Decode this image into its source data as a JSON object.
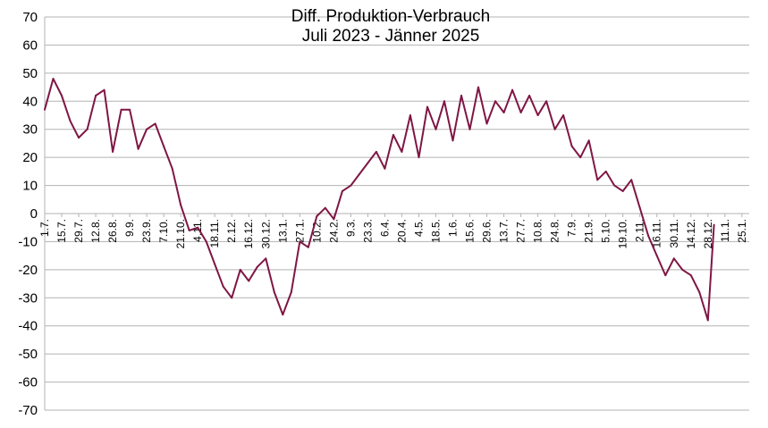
{
  "chart_data": {
    "type": "line",
    "title": "Diff. Produktion-Verbrauch",
    "subtitle": "Juli 2023 - Jänner 2025",
    "xlabel": "",
    "ylabel": "",
    "ylim": [
      -70,
      70
    ],
    "y_ticks": [
      70,
      60,
      50,
      40,
      30,
      20,
      10,
      0,
      -10,
      -20,
      -30,
      -40,
      -50,
      -60,
      -70
    ],
    "x_tick_labels": [
      "1.7.",
      "15.7.",
      "29.7.",
      "12.8.",
      "26.8.",
      "9.9.",
      "23.9.",
      "7.10.",
      "21.10.",
      "4.11.",
      "18.11.",
      "2.12.",
      "16.12.",
      "30.12.",
      "13.1.",
      "27.1.",
      "10.2.",
      "24.2.",
      "9.3.",
      "23.3.",
      "6.4.",
      "20.4.",
      "4.5.",
      "18.5.",
      "1.6.",
      "15.6.",
      "29.6.",
      "13.7.",
      "27.7.",
      "10.8.",
      "24.8.",
      "7.9.",
      "21.9.",
      "5.10.",
      "19.10.",
      "2.11.",
      "16.11.",
      "30.11.",
      "14.12.",
      "28.12.",
      "11.1.",
      "25.1."
    ],
    "grid": true,
    "legend": "none",
    "line_color": "#7f1644",
    "series": [
      {
        "values": [
          {
            "x": "2023-07-01",
            "y": 37
          },
          {
            "x": "2023-07-08",
            "y": 48
          },
          {
            "x": "2023-07-15",
            "y": 42
          },
          {
            "x": "2023-07-22",
            "y": 33
          },
          {
            "x": "2023-07-29",
            "y": 27
          },
          {
            "x": "2023-08-05",
            "y": 30
          },
          {
            "x": "2023-08-12",
            "y": 42
          },
          {
            "x": "2023-08-19",
            "y": 44
          },
          {
            "x": "2023-08-26",
            "y": 22
          },
          {
            "x": "2023-09-02",
            "y": 37
          },
          {
            "x": "2023-09-09",
            "y": 37
          },
          {
            "x": "2023-09-16",
            "y": 23
          },
          {
            "x": "2023-09-23",
            "y": 30
          },
          {
            "x": "2023-09-30",
            "y": 32
          },
          {
            "x": "2023-10-07",
            "y": 24
          },
          {
            "x": "2023-10-14",
            "y": 16
          },
          {
            "x": "2023-10-21",
            "y": 3
          },
          {
            "x": "2023-10-28",
            "y": -6
          },
          {
            "x": "2023-11-04",
            "y": -5
          },
          {
            "x": "2023-11-11",
            "y": -10
          },
          {
            "x": "2023-11-18",
            "y": -18
          },
          {
            "x": "2023-11-25",
            "y": -26
          },
          {
            "x": "2023-12-02",
            "y": -30
          },
          {
            "x": "2023-12-09",
            "y": -20
          },
          {
            "x": "2023-12-16",
            "y": -24
          },
          {
            "x": "2023-12-23",
            "y": -19
          },
          {
            "x": "2023-12-30",
            "y": -16
          },
          {
            "x": "2024-01-06",
            "y": -28
          },
          {
            "x": "2024-01-13",
            "y": -36
          },
          {
            "x": "2024-01-20",
            "y": -28
          },
          {
            "x": "2024-01-27",
            "y": -10
          },
          {
            "x": "2024-02-03",
            "y": -12
          },
          {
            "x": "2024-02-10",
            "y": -1
          },
          {
            "x": "2024-02-17",
            "y": 2
          },
          {
            "x": "2024-02-24",
            "y": -2
          },
          {
            "x": "2024-03-02",
            "y": 8
          },
          {
            "x": "2024-03-09",
            "y": 10
          },
          {
            "x": "2024-03-16",
            "y": 14
          },
          {
            "x": "2024-03-23",
            "y": 18
          },
          {
            "x": "2024-03-30",
            "y": 22
          },
          {
            "x": "2024-04-06",
            "y": 16
          },
          {
            "x": "2024-04-13",
            "y": 28
          },
          {
            "x": "2024-04-20",
            "y": 22
          },
          {
            "x": "2024-04-27",
            "y": 35
          },
          {
            "x": "2024-05-04",
            "y": 20
          },
          {
            "x": "2024-05-11",
            "y": 38
          },
          {
            "x": "2024-05-18",
            "y": 30
          },
          {
            "x": "2024-05-25",
            "y": 40
          },
          {
            "x": "2024-06-01",
            "y": 26
          },
          {
            "x": "2024-06-08",
            "y": 42
          },
          {
            "x": "2024-06-15",
            "y": 30
          },
          {
            "x": "2024-06-22",
            "y": 45
          },
          {
            "x": "2024-06-29",
            "y": 32
          },
          {
            "x": "2024-07-06",
            "y": 40
          },
          {
            "x": "2024-07-13",
            "y": 36
          },
          {
            "x": "2024-07-20",
            "y": 44
          },
          {
            "x": "2024-07-27",
            "y": 36
          },
          {
            "x": "2024-08-03",
            "y": 42
          },
          {
            "x": "2024-08-10",
            "y": 35
          },
          {
            "x": "2024-08-17",
            "y": 40
          },
          {
            "x": "2024-08-24",
            "y": 30
          },
          {
            "x": "2024-08-31",
            "y": 35
          },
          {
            "x": "2024-09-07",
            "y": 24
          },
          {
            "x": "2024-09-14",
            "y": 20
          },
          {
            "x": "2024-09-21",
            "y": 26
          },
          {
            "x": "2024-09-28",
            "y": 12
          },
          {
            "x": "2024-10-05",
            "y": 15
          },
          {
            "x": "2024-10-12",
            "y": 10
          },
          {
            "x": "2024-10-19",
            "y": 8
          },
          {
            "x": "2024-10-26",
            "y": 12
          },
          {
            "x": "2024-11-02",
            "y": 2
          },
          {
            "x": "2024-11-09",
            "y": -8
          },
          {
            "x": "2024-11-16",
            "y": -15
          },
          {
            "x": "2024-11-23",
            "y": -22
          },
          {
            "x": "2024-11-30",
            "y": -16
          },
          {
            "x": "2024-12-07",
            "y": -20
          },
          {
            "x": "2024-12-14",
            "y": -22
          },
          {
            "x": "2024-12-21",
            "y": -28
          },
          {
            "x": "2024-12-28",
            "y": -38
          },
          {
            "x": "2025-01-02",
            "y": -4
          }
        ]
      }
    ]
  }
}
